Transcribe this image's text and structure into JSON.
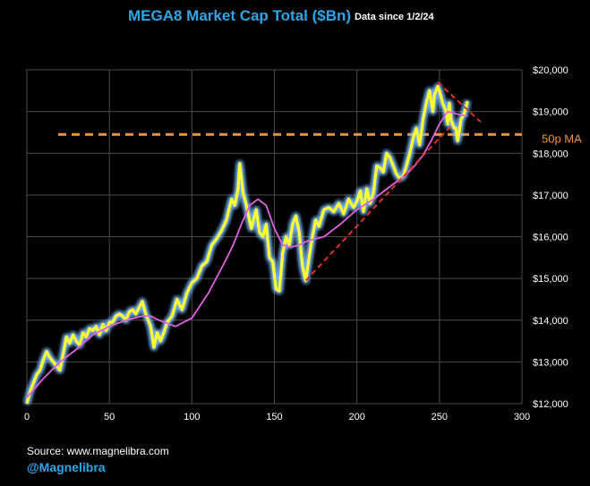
{
  "header": {
    "title": "MEGA8 Market Cap Total ($Bn)",
    "subtitle": "Data since 1/2/24"
  },
  "footer": {
    "source": "Source: www.magnelibra.com",
    "handle": "@Magnelibra"
  },
  "chart_data": {
    "type": "line",
    "title": "MEGA8 Market Cap Total ($Bn)",
    "xlabel": "",
    "ylabel": "",
    "xlim": [
      0,
      300
    ],
    "ylim": [
      12000,
      20000
    ],
    "x_ticks": [
      0,
      50,
      100,
      150,
      200,
      250,
      300
    ],
    "x_tick_labels": [
      "0",
      "50",
      "100",
      "150",
      "200",
      "250",
      "300"
    ],
    "y_ticks": [
      12000,
      13000,
      14000,
      15000,
      16000,
      17000,
      18000,
      19000,
      20000
    ],
    "y_tick_labels": [
      "$12,000",
      "$13,000",
      "$14,000",
      "$15,000",
      "$16,000",
      "$17,000",
      "$18,000",
      "$19,000",
      "$20,000"
    ],
    "grid": true,
    "colors": {
      "background": "#000000",
      "grid": "#4a4a4a",
      "price": "#ffff33",
      "glow": "#7fbfff",
      "ma": "#e060e0",
      "trend": "#e03030",
      "level": "#f0913a"
    },
    "series": [
      {
        "name": "MEGA8 Market Cap",
        "x": [
          0,
          2,
          4,
          6,
          8,
          10,
          12,
          14,
          16,
          18,
          20,
          22,
          24,
          26,
          28,
          30,
          32,
          34,
          36,
          38,
          40,
          42,
          44,
          46,
          48,
          50,
          52,
          54,
          56,
          58,
          60,
          62,
          64,
          66,
          68,
          70,
          72,
          73,
          75,
          77,
          79,
          81,
          83,
          85,
          88,
          91,
          94,
          97,
          100,
          103,
          106,
          109,
          112,
          115,
          118,
          121,
          124,
          126,
          128,
          129,
          131,
          133,
          136,
          139,
          141,
          143,
          145,
          147,
          149,
          151,
          153,
          155,
          157,
          159,
          161,
          163,
          165,
          167,
          169,
          171,
          173,
          175,
          177,
          180,
          183,
          186,
          189,
          192,
          195,
          198,
          200,
          202,
          204,
          206,
          208,
          210,
          212,
          214,
          216,
          218,
          220,
          222,
          224,
          226,
          228,
          230,
          232,
          234,
          236,
          238,
          240,
          242,
          244,
          246,
          247,
          249,
          250,
          252,
          254,
          255,
          256,
          257,
          258,
          259,
          260,
          261,
          262,
          263,
          265,
          267
        ],
        "values": [
          12000,
          12300,
          12500,
          12700,
          12800,
          13050,
          13250,
          13100,
          13000,
          12900,
          12800,
          13200,
          13600,
          13450,
          13650,
          13500,
          13400,
          13700,
          13600,
          13800,
          13750,
          13850,
          13650,
          13900,
          13750,
          13950,
          13950,
          14100,
          14150,
          14100,
          14000,
          14200,
          14250,
          14150,
          14300,
          14450,
          14150,
          14050,
          13850,
          13350,
          13700,
          13500,
          13700,
          13950,
          14100,
          14500,
          14250,
          14650,
          14900,
          15000,
          15300,
          15400,
          15800,
          15950,
          16150,
          16400,
          16900,
          16750,
          17150,
          17750,
          17050,
          16750,
          16200,
          16650,
          16100,
          16000,
          16300,
          15500,
          15400,
          14750,
          14700,
          15600,
          16000,
          15800,
          16300,
          16500,
          16100,
          15300,
          14950,
          15500,
          16000,
          16400,
          16250,
          16650,
          16700,
          16600,
          16800,
          16550,
          16900,
          16700,
          16850,
          17100,
          16600,
          17150,
          16800,
          17050,
          17700,
          17650,
          17550,
          18000,
          17900,
          17700,
          17500,
          17400,
          17450,
          17700,
          18000,
          18350,
          18600,
          18200,
          18800,
          19200,
          19500,
          19000,
          19400,
          19600,
          19500,
          19200,
          19000,
          18700,
          19200,
          18800,
          18700,
          18600,
          18600,
          18300,
          18500,
          18800,
          18950,
          19250
        ]
      },
      {
        "name": "50p MA",
        "x": [
          0,
          10,
          20,
          30,
          40,
          50,
          60,
          70,
          75,
          80,
          90,
          100,
          110,
          120,
          125,
          130,
          135,
          140,
          145,
          150,
          155,
          160,
          165,
          170,
          180,
          190,
          200,
          210,
          220,
          230,
          235,
          240,
          245,
          250,
          255,
          260,
          265,
          267
        ],
        "values": [
          12150,
          12600,
          13000,
          13300,
          13650,
          13850,
          14000,
          14100,
          14100,
          14000,
          13850,
          14050,
          14650,
          15400,
          15800,
          16300,
          16750,
          16900,
          16750,
          16200,
          15800,
          15750,
          15800,
          15900,
          16000,
          16300,
          16650,
          16900,
          17200,
          17500,
          17700,
          17950,
          18300,
          18700,
          19000,
          18950,
          18900,
          18900
        ]
      },
      {
        "name": "Uptrend line",
        "x": [
          169,
          258
        ],
        "values": [
          14950,
          18700
        ]
      },
      {
        "name": "Downtrend line",
        "x": [
          249,
          275
        ],
        "values": [
          19700,
          18750
        ]
      },
      {
        "name": "50p MA level",
        "x": [
          19,
          300
        ],
        "values": [
          18450,
          18450
        ]
      }
    ],
    "annotations": [
      {
        "text": "50p MA",
        "x": 300,
        "y": 18450
      }
    ]
  }
}
